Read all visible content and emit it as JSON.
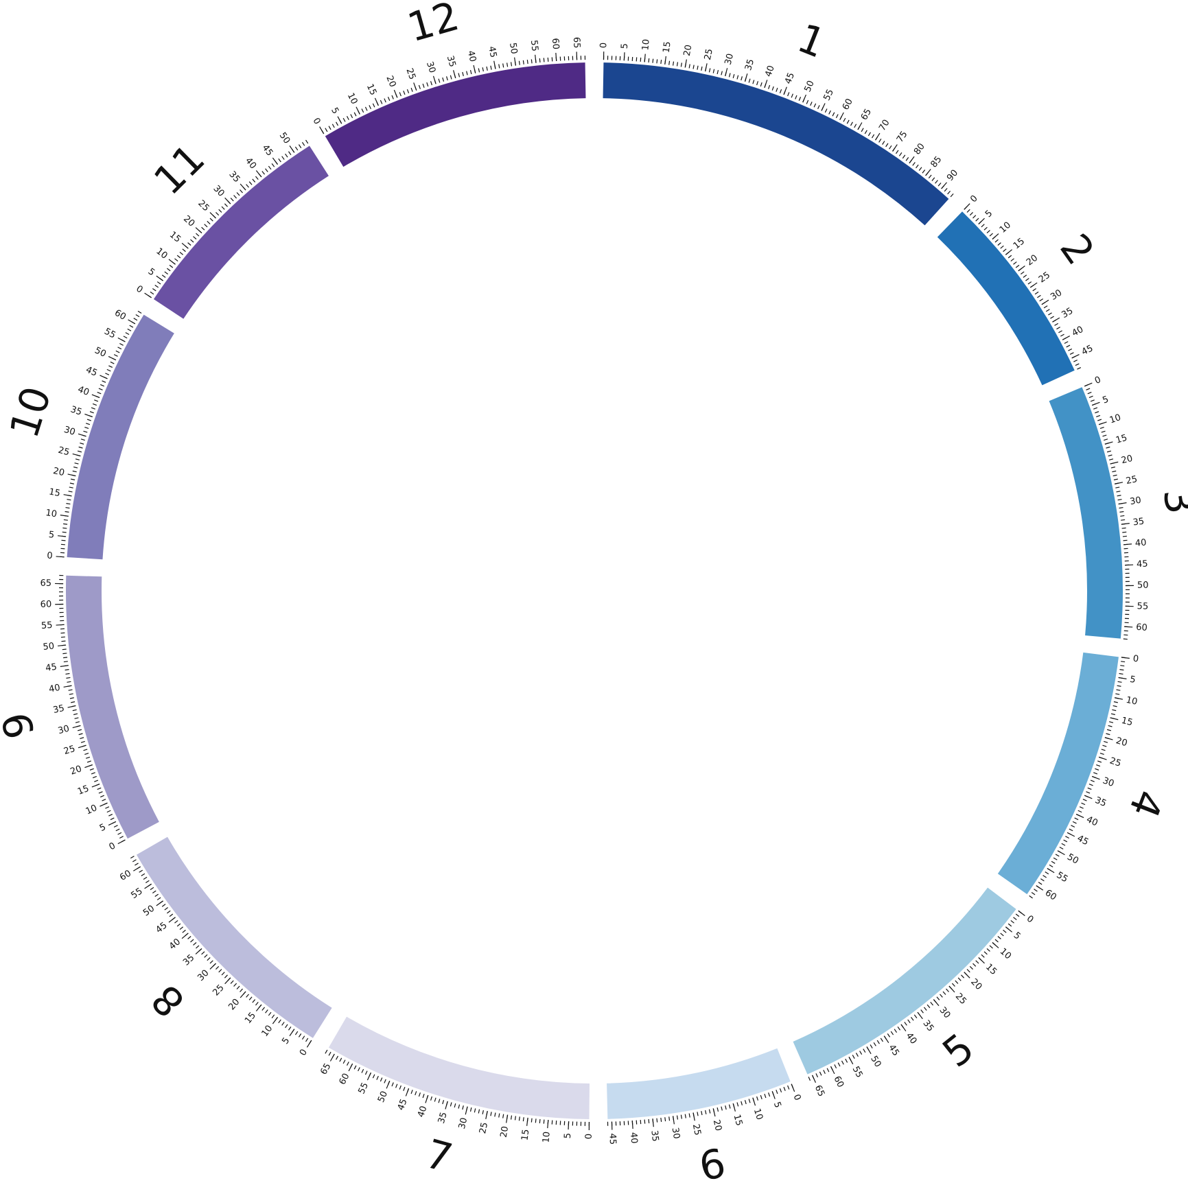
{
  "chart_data": {
    "type": "ideogram",
    "minor_tick_step": 1,
    "segments": [
      {
        "name": "1",
        "value": 93,
        "color": "#1b4690",
        "ticks": [
          0,
          5,
          10,
          15,
          20,
          25,
          30,
          35,
          40,
          45,
          50,
          55,
          60,
          65,
          70,
          75,
          80,
          85,
          90
        ]
      },
      {
        "name": "2",
        "value": 48,
        "color": "#2171b5",
        "ticks": [
          0,
          5,
          10,
          15,
          20,
          25,
          30,
          35,
          40,
          45
        ]
      },
      {
        "name": "3",
        "value": 63,
        "color": "#4292c6",
        "ticks": [
          0,
          5,
          10,
          15,
          20,
          25,
          30,
          35,
          40,
          45,
          50,
          55,
          60
        ]
      },
      {
        "name": "4",
        "value": 63,
        "color": "#6baed6",
        "ticks": [
          0,
          5,
          10,
          15,
          20,
          25,
          30,
          35,
          40,
          45,
          50,
          55,
          60
        ]
      },
      {
        "name": "5",
        "value": 66,
        "color": "#9ecae1",
        "ticks": [
          0,
          5,
          10,
          15,
          20,
          25,
          30,
          35,
          40,
          45,
          50,
          55,
          60,
          65
        ]
      },
      {
        "name": "6",
        "value": 46,
        "color": "#c6dbef",
        "ticks": [
          0,
          5,
          10,
          15,
          20,
          25,
          30,
          35,
          40,
          45
        ]
      },
      {
        "name": "7",
        "value": 67,
        "color": "#dadaeb",
        "ticks": [
          0,
          5,
          10,
          15,
          20,
          25,
          30,
          35,
          40,
          45,
          50,
          55,
          60,
          65
        ]
      },
      {
        "name": "8",
        "value": 63,
        "color": "#bcbddc",
        "ticks": [
          0,
          5,
          10,
          15,
          20,
          25,
          30,
          35,
          40,
          45,
          50,
          55,
          60
        ]
      },
      {
        "name": "9",
        "value": 67,
        "color": "#9e9ac8",
        "ticks": [
          0,
          5,
          10,
          15,
          20,
          25,
          30,
          35,
          40,
          45,
          50,
          55,
          60,
          65
        ]
      },
      {
        "name": "10",
        "value": 63,
        "color": "#807dba",
        "ticks": [
          0,
          5,
          10,
          15,
          20,
          25,
          30,
          35,
          40,
          45,
          50,
          55,
          60
        ]
      },
      {
        "name": "11",
        "value": 54,
        "color": "#6a51a3",
        "ticks": [
          0,
          5,
          10,
          15,
          20,
          25,
          30,
          35,
          40,
          45,
          50
        ]
      },
      {
        "name": "12",
        "value": 67,
        "color": "#4f2a85",
        "ticks": [
          0,
          5,
          10,
          15,
          20,
          25,
          30,
          35,
          40,
          45,
          50,
          55,
          60,
          65
        ]
      }
    ]
  }
}
